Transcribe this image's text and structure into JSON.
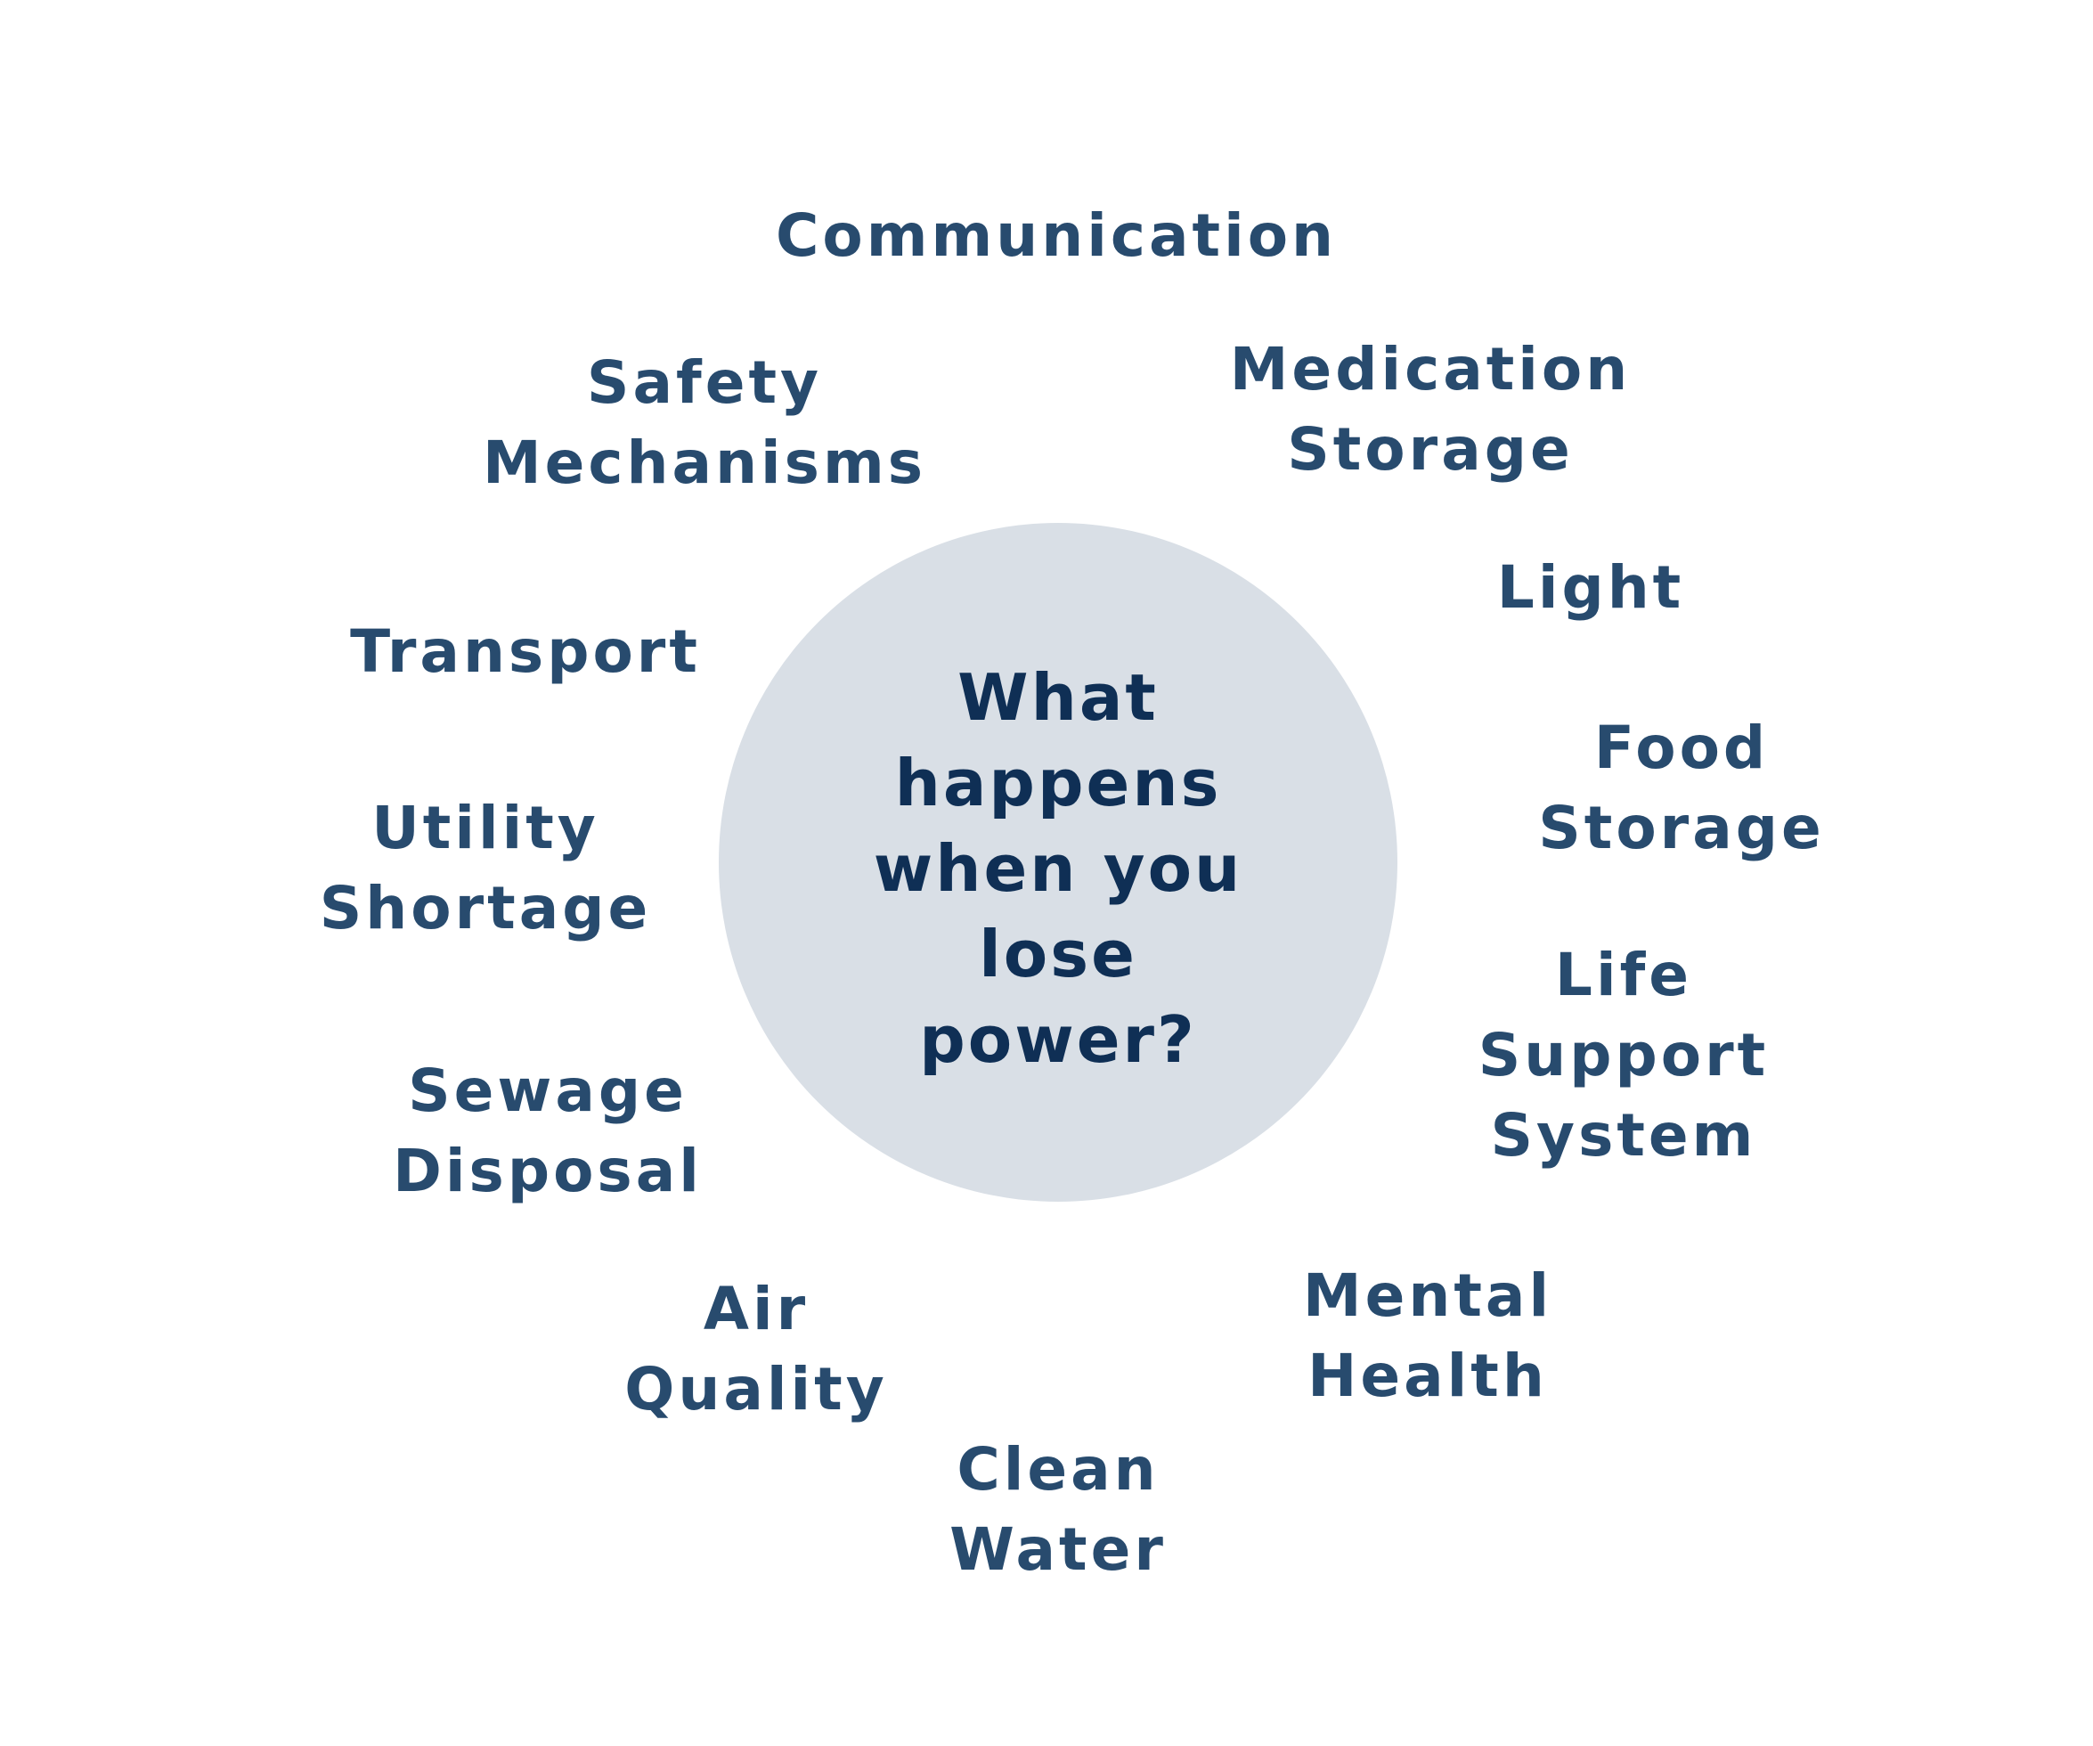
{
  "center": {
    "lines": [
      "What",
      "happens",
      "when you",
      "lose",
      "power?"
    ]
  },
  "topics": [
    {
      "lines": [
        "Communication"
      ]
    },
    {
      "lines": [
        "Medication",
        "Storage"
      ]
    },
    {
      "lines": [
        "Safety",
        "Mechanisms"
      ]
    },
    {
      "lines": [
        "Light"
      ]
    },
    {
      "lines": [
        "Transport"
      ]
    },
    {
      "lines": [
        "Food",
        "Storage"
      ]
    },
    {
      "lines": [
        "Utility",
        "Shortage"
      ]
    },
    {
      "lines": [
        "Life",
        "Support",
        "System"
      ]
    },
    {
      "lines": [
        "Sewage",
        "Disposal"
      ]
    },
    {
      "lines": [
        "Mental",
        "Health"
      ]
    },
    {
      "lines": [
        "Air",
        "Quality"
      ]
    },
    {
      "lines": [
        "Clean",
        "Water"
      ]
    }
  ],
  "colors": {
    "circle": "#d9dfe6",
    "center_text": "#0f2f55",
    "topic_text": "#284b6e"
  }
}
